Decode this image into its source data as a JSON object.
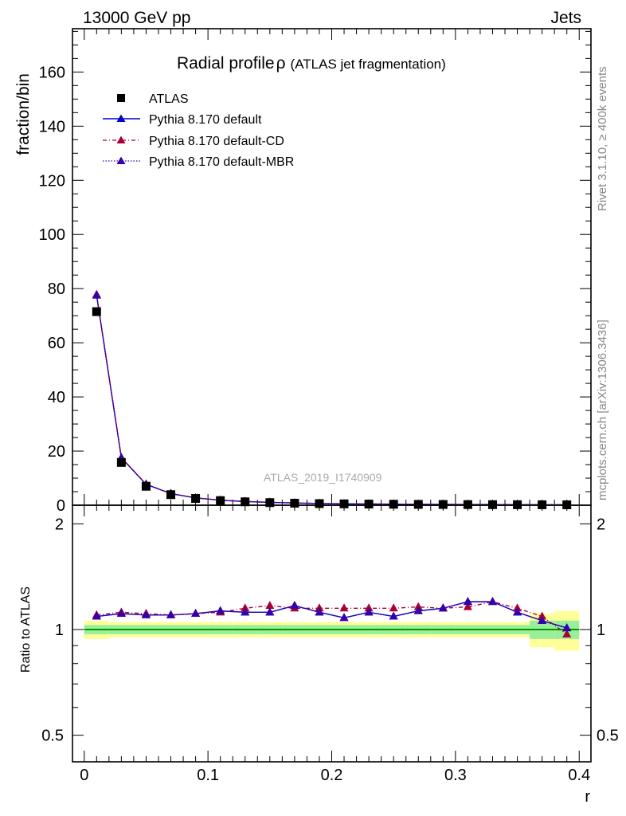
{
  "header": {
    "left": "13000 GeV pp",
    "right": "Jets"
  },
  "side_labels": {
    "rivet": "Rivet 3.1.10, ≥ 400k events",
    "mcplots": "mcplots.cern.ch [arXiv:1306.3436]"
  },
  "watermark": "ATLAS_2019_I1740909",
  "chart_data": [
    {
      "type": "line",
      "panel": "main",
      "title": "Radial profile",
      "title_symbol": "ρ",
      "subtitle": "(ATLAS jet fragmentation)",
      "xlabel": "r",
      "ylabel": "fraction/bin",
      "xlim": [
        -0.0095,
        0.4095
      ],
      "ylim": [
        0,
        176
      ],
      "yticks": [
        0,
        20,
        40,
        60,
        80,
        100,
        120,
        140,
        160
      ],
      "x": [
        0.01,
        0.03,
        0.05,
        0.07,
        0.09,
        0.11,
        0.13,
        0.15,
        0.17,
        0.19,
        0.21,
        0.23,
        0.25,
        0.27,
        0.29,
        0.31,
        0.33,
        0.35,
        0.37,
        0.39
      ],
      "series": [
        {
          "name": "ATLAS",
          "color": "#000000",
          "marker": "square",
          "values": [
            71.5,
            15.8,
            7.0,
            3.9,
            2.5,
            1.7,
            1.25,
            0.95,
            0.75,
            0.6,
            0.5,
            0.42,
            0.36,
            0.31,
            0.27,
            0.24,
            0.21,
            0.19,
            0.17,
            0.15
          ]
        },
        {
          "name": "Pythia 8.170 default",
          "color": "#0000cc",
          "marker": "triangle",
          "line": "solid",
          "values": [
            77.5,
            17.5,
            7.7,
            4.3,
            2.7,
            1.85,
            1.36,
            1.04,
            0.82,
            0.65,
            0.53,
            0.45,
            0.39,
            0.34,
            0.3,
            0.28,
            0.25,
            0.21,
            0.18,
            0.15
          ]
        },
        {
          "name": "Pythia 8.170 default-CD",
          "color": "#aa0033",
          "marker": "triangle",
          "line": "dashed",
          "values": [
            77.8,
            17.6,
            7.8,
            4.3,
            2.7,
            1.86,
            1.39,
            1.09,
            0.85,
            0.67,
            0.56,
            0.47,
            0.41,
            0.35,
            0.31,
            0.28,
            0.25,
            0.21,
            0.18,
            0.15
          ]
        },
        {
          "name": "Pythia 8.170 default-MBR",
          "color": "#3300aa",
          "marker": "triangle",
          "line": "dotted",
          "values": [
            77.5,
            17.5,
            7.7,
            4.3,
            2.7,
            1.85,
            1.36,
            1.04,
            0.82,
            0.65,
            0.53,
            0.45,
            0.39,
            0.34,
            0.3,
            0.28,
            0.25,
            0.21,
            0.18,
            0.15
          ]
        }
      ]
    },
    {
      "type": "line",
      "panel": "ratio",
      "ylabel": "Ratio to ATLAS",
      "xlabel": "r",
      "xticks": [
        0,
        0.1,
        0.2,
        0.3,
        0.4
      ],
      "xlim": [
        -0.0095,
        0.4095
      ],
      "ylim": [
        0.42,
        2.26
      ],
      "yticks": [
        0.5,
        1,
        2
      ],
      "yticklabels": [
        "0.5",
        "1",
        "2"
      ],
      "x": [
        0.01,
        0.03,
        0.05,
        0.07,
        0.09,
        0.11,
        0.13,
        0.15,
        0.17,
        0.19,
        0.21,
        0.23,
        0.25,
        0.27,
        0.29,
        0.31,
        0.33,
        0.35,
        0.37,
        0.39
      ],
      "band_inner": [
        0.03,
        0.03,
        0.03,
        0.03,
        0.03,
        0.03,
        0.03,
        0.03,
        0.03,
        0.03,
        0.03,
        0.03,
        0.03,
        0.03,
        0.03,
        0.03,
        0.03,
        0.03,
        0.06,
        0.06
      ],
      "band_outer": [
        0.06,
        0.05,
        0.05,
        0.05,
        0.05,
        0.05,
        0.05,
        0.05,
        0.05,
        0.05,
        0.05,
        0.05,
        0.05,
        0.05,
        0.05,
        0.05,
        0.05,
        0.05,
        0.11,
        0.13
      ],
      "series": [
        {
          "name": "Pythia 8.170 default",
          "color": "#0000cc",
          "marker": "triangle",
          "line": "solid",
          "values": [
            1.09,
            1.11,
            1.1,
            1.1,
            1.11,
            1.13,
            1.12,
            1.12,
            1.17,
            1.12,
            1.08,
            1.12,
            1.09,
            1.13,
            1.15,
            1.2,
            1.2,
            1.12,
            1.06,
            1.01
          ]
        },
        {
          "name": "Pythia 8.170 default-CD",
          "color": "#aa0033",
          "marker": "triangle",
          "line": "dashed",
          "values": [
            1.1,
            1.12,
            1.11,
            1.1,
            1.11,
            1.12,
            1.15,
            1.17,
            1.15,
            1.15,
            1.15,
            1.15,
            1.15,
            1.16,
            1.15,
            1.16,
            1.2,
            1.15,
            1.09,
            0.97
          ]
        },
        {
          "name": "Pythia 8.170 default-MBR",
          "color": "#3300aa",
          "marker": "triangle",
          "line": "dotted",
          "values": [
            1.09,
            1.11,
            1.1,
            1.1,
            1.11,
            1.13,
            1.12,
            1.12,
            1.17,
            1.12,
            1.08,
            1.12,
            1.09,
            1.13,
            1.15,
            1.2,
            1.2,
            1.12,
            1.06,
            1.01
          ]
        }
      ]
    }
  ]
}
